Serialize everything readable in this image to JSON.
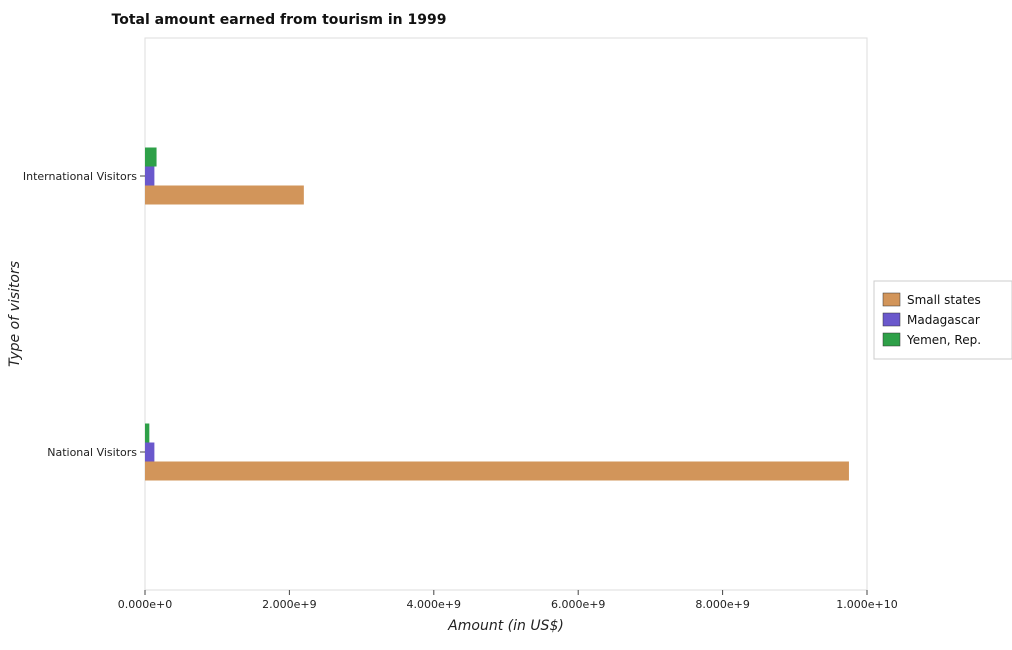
{
  "chart_data": {
    "type": "bar",
    "orientation": "horizontal",
    "title": "Total amount earned from tourism in 1999",
    "xlabel": "Amount (in US$)",
    "ylabel": "Type of visitors",
    "categories": [
      "National Visitors",
      "International Visitors"
    ],
    "series": [
      {
        "name": "Small states",
        "color": "#d2955a",
        "values": [
          9750000000,
          2200000000
        ]
      },
      {
        "name": "Madagascar",
        "color": "#6a58cc",
        "values": [
          130000000,
          130000000
        ]
      },
      {
        "name": "Yemen, Rep.",
        "color": "#2ea048",
        "values": [
          60000000,
          160000000
        ]
      }
    ],
    "xlim": [
      0,
      10000000000
    ],
    "xticks": [
      {
        "value": 0,
        "label": "0.000e+0"
      },
      {
        "value": 2000000000,
        "label": "2.000e+9"
      },
      {
        "value": 4000000000,
        "label": "4.000e+9"
      },
      {
        "value": 6000000000,
        "label": "6.000e+9"
      },
      {
        "value": 8000000000,
        "label": "8.000e+9"
      },
      {
        "value": 10000000000,
        "label": "1.000e+10"
      }
    ],
    "grid": false,
    "legend_position": "right"
  }
}
